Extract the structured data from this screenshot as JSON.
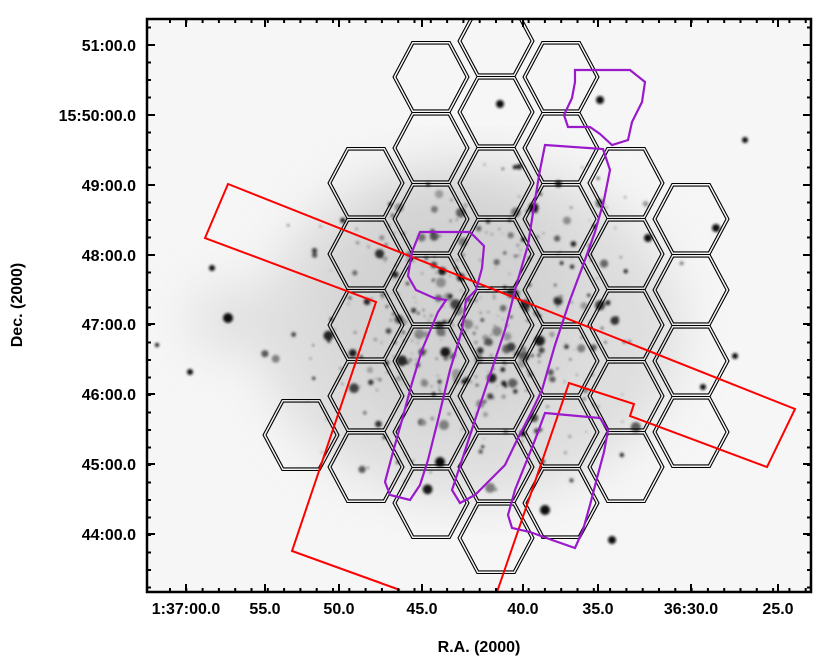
{
  "figure": {
    "ylabel": "Dec. (2000)",
    "xlabel": "R.A. (2000)",
    "y_ticks": [
      "51:00.0",
      "15:50:00.0",
      "49:00.0",
      "48:00.0",
      "47:00.0",
      "46:00.0",
      "45:00.0",
      "44:00.0"
    ],
    "x_ticks": [
      "1:37:00.0",
      "55.0",
      "50.0",
      "45.0",
      "40.0",
      "35.0",
      "36:30.0",
      "25.0"
    ]
  },
  "overlays": {
    "hexagon_mosaic": {
      "count": 37,
      "color": "#000000",
      "style": "double-outline"
    },
    "rectangles": {
      "count": 2,
      "color": "#ff0000"
    },
    "footprints": {
      "count": 4,
      "color": "#9b19cc"
    }
  }
}
